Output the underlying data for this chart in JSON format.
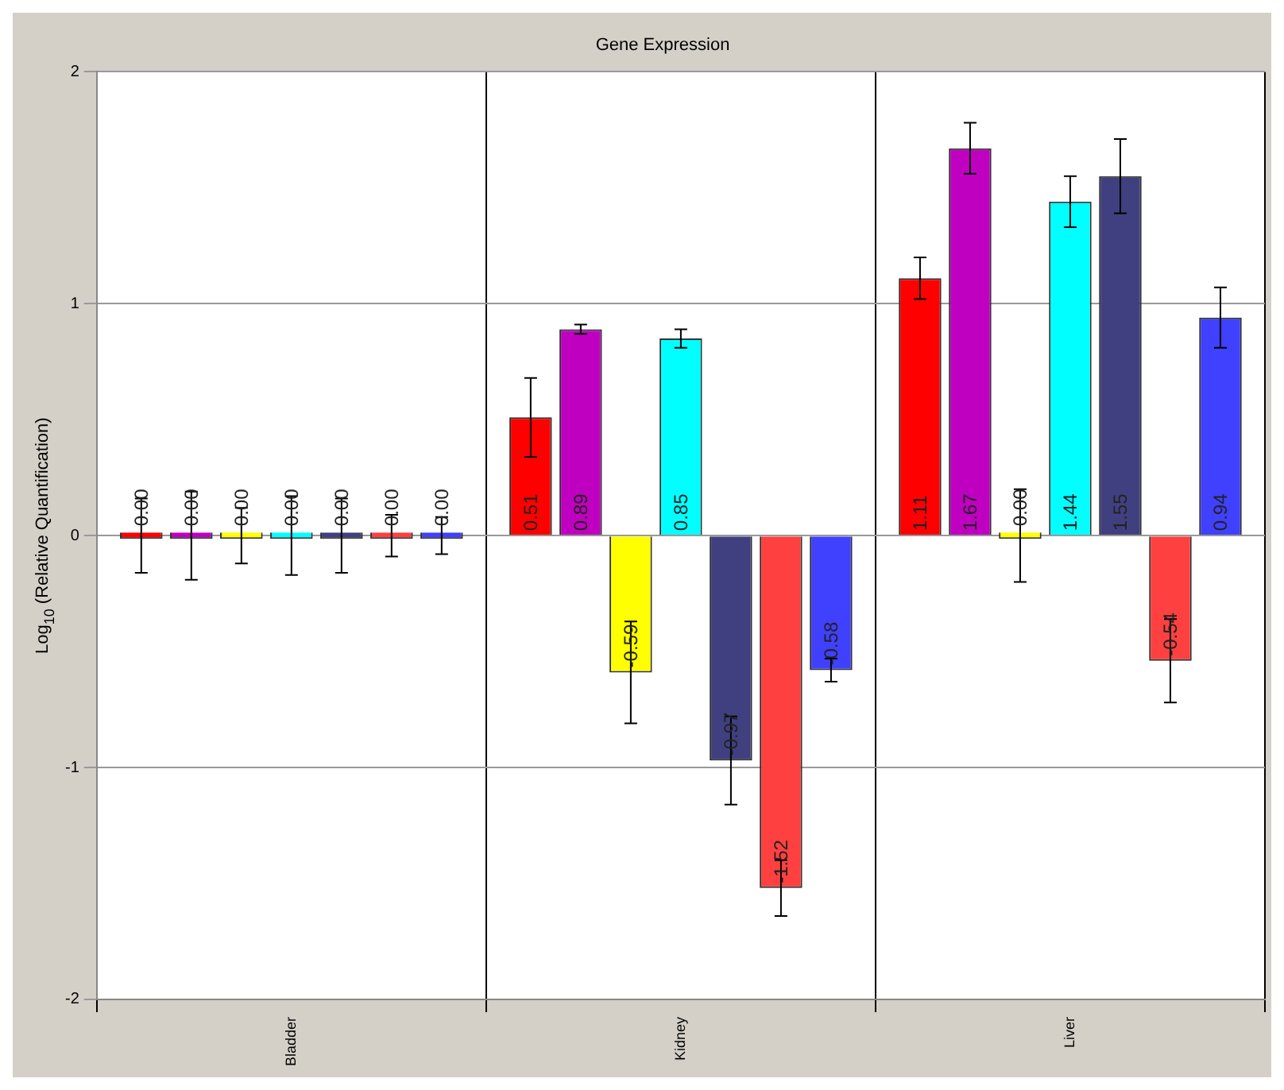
{
  "chart_data": {
    "type": "bar",
    "title": "Gene Expression",
    "ylabel": "Log$_{10}$ (Relative Quantification)",
    "categories": [
      "Bladder",
      "Kidney",
      "Liver"
    ],
    "ylim": [
      -2,
      2
    ],
    "yticks": [
      -2,
      -1,
      0,
      1,
      2
    ],
    "grid": true,
    "legend": false,
    "series": [
      {
        "color": "#ff0000",
        "values": [
          0,
          0.51,
          1.11
        ],
        "errors": [
          0.16,
          0.17,
          0.09
        ],
        "value_labels": [
          "0.00",
          "0.51",
          "1.11"
        ]
      },
      {
        "color": "#c000c0",
        "values": [
          0,
          0.89,
          1.67
        ],
        "errors": [
          0.19,
          0.02,
          0.11
        ],
        "value_labels": [
          "0.00",
          "0.89",
          "1.67"
        ]
      },
      {
        "color": "#ffff00",
        "values": [
          0,
          -0.59,
          0
        ],
        "errors": [
          0.12,
          0.22,
          0.2
        ],
        "value_labels": [
          "0.00",
          "-0.59",
          "0.00"
        ]
      },
      {
        "color": "#00ffff",
        "values": [
          0,
          0.85,
          1.44
        ],
        "errors": [
          0.17,
          0.04,
          0.11
        ],
        "value_labels": [
          "0.00",
          "0.85",
          "1.44"
        ]
      },
      {
        "color": "#404080",
        "values": [
          0,
          -0.97,
          1.55
        ],
        "errors": [
          0.16,
          0.19,
          0.16
        ],
        "value_labels": [
          "0.00",
          "-0.97",
          "1.55"
        ]
      },
      {
        "color": "#ff4040",
        "values": [
          0,
          -1.52,
          -0.54
        ],
        "errors": [
          0.09,
          0.12,
          0.18
        ],
        "value_labels": [
          "0.00",
          "-1.52",
          "-0.54"
        ]
      },
      {
        "color": "#4040ff",
        "values": [
          0,
          -0.58,
          0.94
        ],
        "errors": [
          0.08,
          0.05,
          0.13
        ],
        "value_labels": [
          "0.00",
          "-0.58",
          "0.94"
        ]
      }
    ]
  }
}
